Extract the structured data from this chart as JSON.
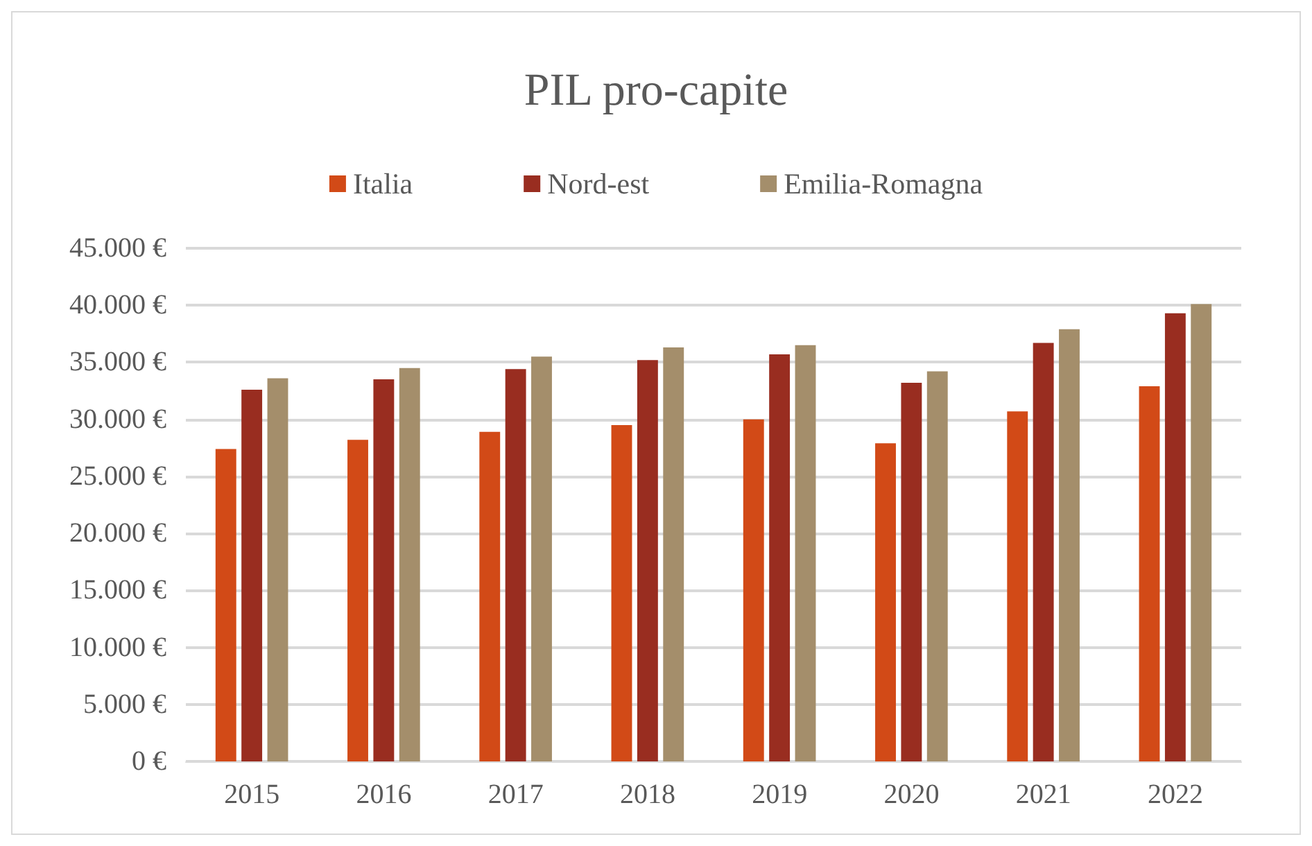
{
  "chart_data": {
    "type": "bar",
    "title": "PIL pro-capite",
    "categories": [
      "2015",
      "2016",
      "2017",
      "2018",
      "2019",
      "2020",
      "2021",
      "2022"
    ],
    "series": [
      {
        "name": "Italia",
        "color": "#d24a17",
        "values": [
          27400,
          28200,
          28900,
          29500,
          30000,
          27900,
          30700,
          32900
        ]
      },
      {
        "name": "Nord-est",
        "color": "#992d20",
        "values": [
          32600,
          33500,
          34400,
          35200,
          35700,
          33200,
          36700,
          39300
        ]
      },
      {
        "name": "Emilia-Romagna",
        "color": "#a48e6b",
        "values": [
          33600,
          34500,
          35500,
          36300,
          36500,
          34200,
          37900,
          40100
        ]
      }
    ],
    "ylim": [
      0,
      45000
    ],
    "yticks": [
      {
        "value": 0,
        "label": "0 €"
      },
      {
        "value": 5000,
        "label": "5.000 €"
      },
      {
        "value": 10000,
        "label": "10.000 €"
      },
      {
        "value": 15000,
        "label": "15.000 €"
      },
      {
        "value": 20000,
        "label": "20.000 €"
      },
      {
        "value": 25000,
        "label": "25.000 €"
      },
      {
        "value": 30000,
        "label": "30.000 €"
      },
      {
        "value": 35000,
        "label": "35.000 €"
      },
      {
        "value": 40000,
        "label": "40.000 €"
      },
      {
        "value": 45000,
        "label": "45.000 €"
      }
    ],
    "grid": "y",
    "legend": "top"
  }
}
